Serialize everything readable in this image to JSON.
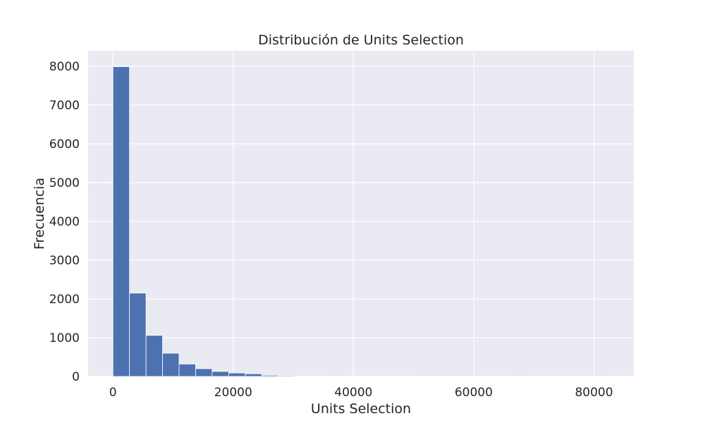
{
  "chart_data": {
    "type": "bar",
    "title": "Distribución de Units Selection",
    "xlabel": "Units Selection",
    "ylabel": "Frecuencia",
    "bin_edges": [
      0,
      2750,
      5500,
      8250,
      11000,
      13750,
      16500,
      19250,
      22000,
      24750,
      27500,
      30250,
      33000,
      35750,
      38500,
      41250,
      44000,
      46750,
      49500,
      52250,
      55000,
      57750,
      60500,
      63250,
      66000,
      68750,
      71500,
      74250,
      77000,
      79750,
      82500
    ],
    "values": [
      7990,
      2150,
      1060,
      600,
      320,
      200,
      130,
      90,
      70,
      30,
      20,
      10,
      8,
      5,
      4,
      3,
      2,
      2,
      1,
      1,
      1,
      1,
      0,
      0,
      1,
      0,
      0,
      0,
      0,
      1
    ],
    "xlim": [
      -4125,
      86625
    ],
    "ylim": [
      0,
      8400
    ],
    "xticks": [
      0,
      20000,
      40000,
      60000,
      80000
    ],
    "yticks": [
      0,
      1000,
      2000,
      3000,
      4000,
      5000,
      6000,
      7000,
      8000
    ],
    "grid": true,
    "colors": {
      "bar": "#4c72b0",
      "bar_edge": "#ffffff",
      "plot_background": "#eaeaf2",
      "grid": "#ffffff"
    }
  }
}
